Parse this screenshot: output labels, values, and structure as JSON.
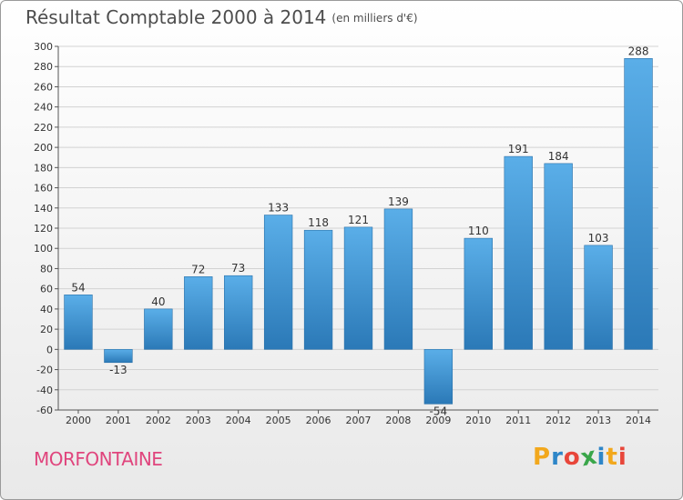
{
  "header": {
    "title": "Résultat Comptable 2000 à 2014",
    "subtitle": "(en milliers d'€)"
  },
  "footer": {
    "commune": "MORFONTAINE",
    "logo_letters": [
      "P",
      "r",
      "o",
      "x",
      "i",
      "t",
      "i"
    ],
    "logo_colors": [
      "#f2a81d",
      "#2e86c8",
      "#e8463a",
      "#3aa64a",
      "#2e86c8",
      "#f2a81d",
      "#e8463a"
    ]
  },
  "colors": {
    "bar_top": "#5aaee8",
    "bar_bottom": "#2b79b7",
    "grid": "#d2d2d2",
    "axis": "#555555",
    "text": "#333333"
  },
  "chart_data": {
    "type": "bar",
    "title": "Résultat Comptable 2000 à 2014",
    "subtitle": "(en milliers d'€)",
    "categories": [
      "2000",
      "2001",
      "2002",
      "2003",
      "2004",
      "2005",
      "2006",
      "2007",
      "2008",
      "2009",
      "2010",
      "2011",
      "2012",
      "2013",
      "2014"
    ],
    "values": [
      54,
      -13,
      40,
      72,
      73,
      133,
      118,
      121,
      139,
      -54,
      110,
      191,
      184,
      103,
      288
    ],
    "value_labels": [
      "54",
      "-13",
      "40",
      "72",
      "73",
      "133",
      "118",
      "121",
      "139",
      "-54",
      "110",
      "191",
      "184",
      "103",
      "288"
    ],
    "ylim": [
      -60,
      300
    ],
    "yticks": [
      -60,
      -40,
      -20,
      0,
      20,
      40,
      60,
      80,
      100,
      120,
      140,
      160,
      180,
      200,
      220,
      240,
      260,
      280,
      300
    ],
    "grid": true,
    "xlabel": "",
    "ylabel": ""
  }
}
